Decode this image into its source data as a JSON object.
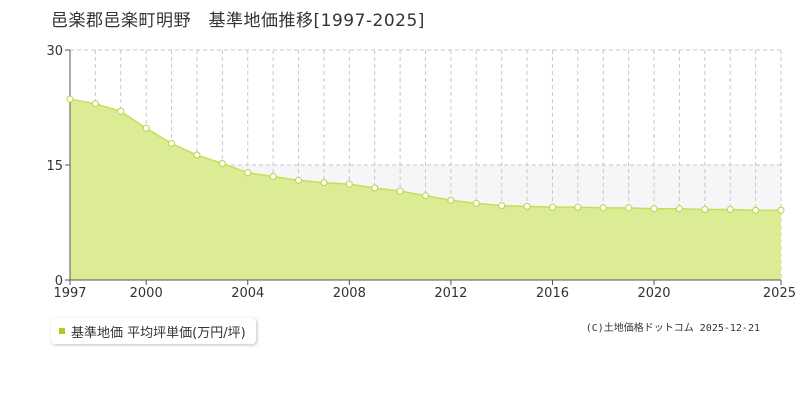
{
  "title": "邑楽郡邑楽町明野　基準地価推移[1997-2025]",
  "legend": {
    "label": "基準地価 平均坪単価(万円/坪)"
  },
  "credit": "(C)土地価格ドットコム 2025-12-21",
  "colors": {
    "area_fill": "#dbec95",
    "line": "#c3e05b",
    "marker_fill": "#ffffff",
    "marker_stroke": "#b5d640",
    "grid_dashed": "#c8c8c8",
    "upper_band": "#f7f5f8",
    "axis": "#555555",
    "legend_marker": "#a5d11b"
  },
  "chart_data": {
    "type": "area",
    "title": "邑楽郡邑楽町明野　基準地価推移[1997-2025]",
    "xlabel": "",
    "ylabel": "",
    "x": [
      1997,
      1998,
      1999,
      2000,
      2001,
      2002,
      2003,
      2004,
      2005,
      2006,
      2007,
      2008,
      2009,
      2010,
      2011,
      2012,
      2013,
      2014,
      2015,
      2016,
      2017,
      2018,
      2019,
      2020,
      2021,
      2022,
      2023,
      2024,
      2025
    ],
    "series": [
      {
        "name": "基準地価 平均坪単価(万円/坪)",
        "values": [
          23.6,
          23.0,
          22.0,
          19.8,
          17.8,
          16.3,
          15.2,
          14.0,
          13.5,
          13.0,
          12.7,
          12.5,
          12.0,
          11.6,
          11.0,
          10.4,
          10.0,
          9.7,
          9.6,
          9.5,
          9.5,
          9.4,
          9.4,
          9.3,
          9.3,
          9.2,
          9.2,
          9.1,
          9.1
        ]
      }
    ],
    "ylim": [
      0,
      30
    ],
    "xlim": [
      1997,
      2025
    ],
    "y_ticks": [
      0,
      15,
      30
    ],
    "x_tick_labels": [
      "1997",
      "2000",
      "2004",
      "2008",
      "2012",
      "2016",
      "2020",
      "2025"
    ],
    "grid": true,
    "legend_position": "bottom-left"
  }
}
